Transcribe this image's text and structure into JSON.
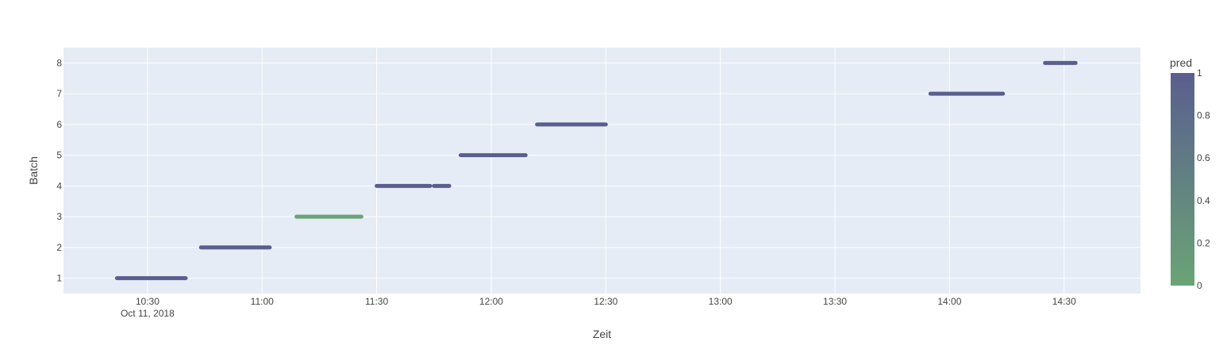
{
  "chart_data": {
    "type": "scatter",
    "xlabel": "Zeit",
    "ylabel": "Batch",
    "x_range": [
      "10:08",
      "14:50"
    ],
    "x_ticks": [
      "10:30",
      "11:00",
      "11:30",
      "12:00",
      "12:30",
      "13:00",
      "13:30",
      "14:00",
      "14:30"
    ],
    "x_date_label": "Oct 11, 2018",
    "y_range": [
      0.5,
      8.5
    ],
    "y_ticks": [
      1,
      2,
      3,
      4,
      5,
      6,
      7,
      8
    ],
    "grid": true,
    "colorbar": {
      "title": "pred",
      "ticks": [
        0,
        0.2,
        0.4,
        0.6,
        0.8,
        1
      ],
      "range": [
        0,
        1
      ],
      "color_low": "#6aa476",
      "color_high": "#5a5e8e"
    },
    "series": [
      {
        "batch": 1,
        "start": "10:22",
        "end": "10:40",
        "pred": 1
      },
      {
        "batch": 2,
        "start": "10:44",
        "end": "11:02",
        "pred": 1
      },
      {
        "batch": 3,
        "start": "11:09",
        "end": "11:26",
        "pred": 0
      },
      {
        "batch": 4,
        "start": "11:30",
        "end": "11:44",
        "pred": 1
      },
      {
        "batch": 4,
        "start": "11:45",
        "end": "11:49",
        "pred": 1
      },
      {
        "batch": 5,
        "start": "11:52",
        "end": "12:09",
        "pred": 1
      },
      {
        "batch": 6,
        "start": "12:12",
        "end": "12:30",
        "pred": 1
      },
      {
        "batch": 7,
        "start": "13:55",
        "end": "14:14",
        "pred": 1
      },
      {
        "batch": 8,
        "start": "14:25",
        "end": "14:33",
        "pred": 1
      }
    ]
  }
}
